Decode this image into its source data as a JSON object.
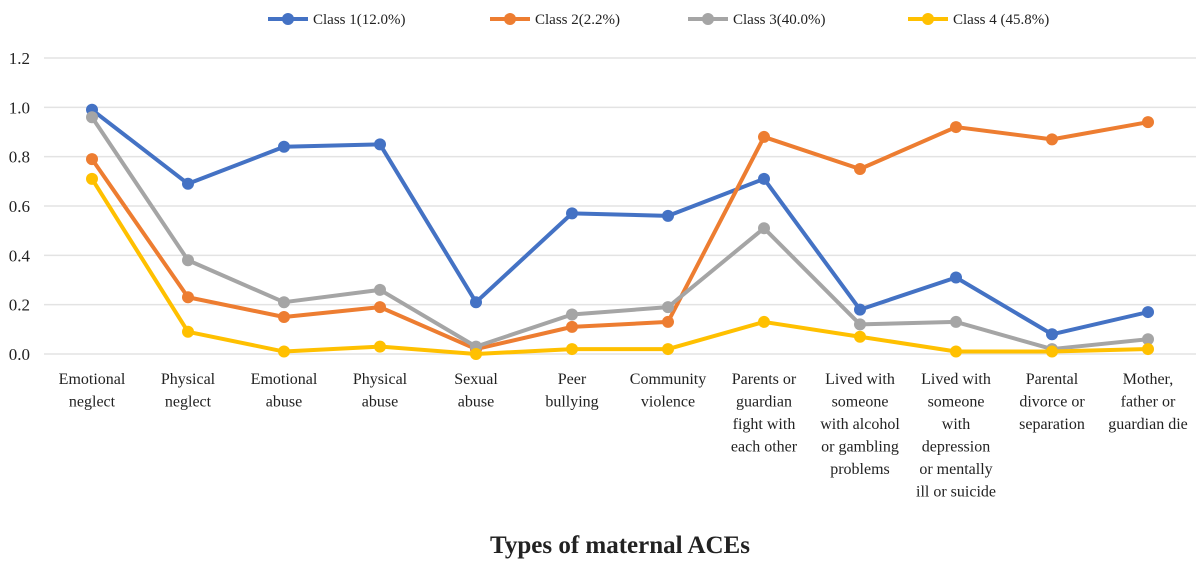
{
  "chart_data": {
    "type": "line",
    "title": "",
    "xlabel": "Types of maternal ACEs",
    "ylabel": "",
    "ylim": [
      0,
      1.2
    ],
    "yticks": [
      "0.0",
      "0.2",
      "0.4",
      "0.6",
      "0.8",
      "1.0",
      "1.2"
    ],
    "grid": true,
    "legend_position": "top",
    "categories": [
      [
        "Emotional",
        "neglect"
      ],
      [
        "Physical",
        "neglect"
      ],
      [
        "Emotional",
        "abuse"
      ],
      [
        "Physical",
        "abuse"
      ],
      [
        "Sexual",
        "abuse"
      ],
      [
        "Peer",
        "bullying"
      ],
      [
        "Community",
        "violence"
      ],
      [
        "Parents or",
        "guardian",
        "fight with",
        "each other"
      ],
      [
        "Lived with",
        "someone",
        "with alcohol",
        "or gambling",
        "problems"
      ],
      [
        "Lived with",
        "someone",
        "with",
        "depression",
        "or mentally",
        "ill or suicide"
      ],
      [
        "Parental",
        "divorce or",
        "separation"
      ],
      [
        "Mother,",
        "father or",
        "guardian die"
      ]
    ],
    "series": [
      {
        "name": "Class 1(12.0%)",
        "color": "#4472C4",
        "values": [
          0.99,
          0.69,
          0.84,
          0.85,
          0.21,
          0.57,
          0.56,
          0.71,
          0.18,
          0.31,
          0.08,
          0.17
        ]
      },
      {
        "name": "Class 2(2.2%)",
        "color": "#ED7D31",
        "values": [
          0.79,
          0.23,
          0.15,
          0.19,
          0.02,
          0.11,
          0.13,
          0.88,
          0.75,
          0.92,
          0.87,
          0.94
        ]
      },
      {
        "name": "Class 3(40.0%)",
        "color": "#A5A5A5",
        "values": [
          0.96,
          0.38,
          0.21,
          0.26,
          0.03,
          0.16,
          0.19,
          0.51,
          0.12,
          0.13,
          0.02,
          0.06
        ]
      },
      {
        "name": "Class 4 (45.8%)",
        "color": "#FFC000",
        "values": [
          0.71,
          0.09,
          0.01,
          0.03,
          0.0,
          0.02,
          0.02,
          0.13,
          0.07,
          0.01,
          0.01,
          0.02
        ]
      }
    ]
  }
}
